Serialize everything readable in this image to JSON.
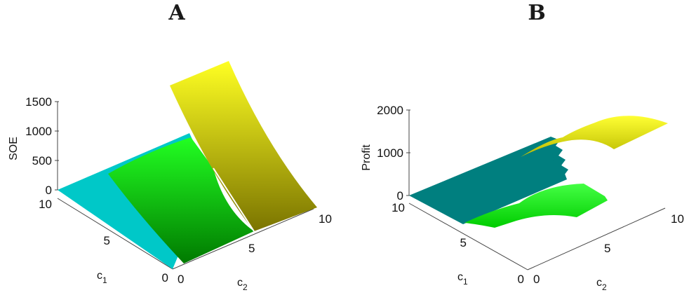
{
  "chart_data": [
    {
      "type": "surface3d",
      "panel_label": "A",
      "xlabel": "c",
      "xlabel_sub": "2",
      "ylabel": "c",
      "ylabel_sub": "1",
      "zlabel": "SOE",
      "xlim": [
        0,
        10
      ],
      "ylim": [
        0,
        10
      ],
      "zlim": [
        0,
        1500
      ],
      "x_ticks": [
        "0",
        "5",
        "10"
      ],
      "y_ticks": [
        "0",
        "5",
        "10"
      ],
      "z_ticks": [
        "0",
        "500",
        "1000",
        "1500"
      ],
      "series": [
        {
          "color": "#00c8c8",
          "description_c2_range": [
            0,
            10
          ],
          "shape": "flat plane at 0"
        },
        {
          "color_dark": "#008800",
          "color_light": "#22ff22",
          "c2_from": 0,
          "c2_to": 5,
          "peak": 600
        },
        {
          "color_dark": "#807a00",
          "color_light": "#ffff22",
          "c2_from": 5,
          "c2_to": 10,
          "peak": 1500
        }
      ]
    },
    {
      "type": "surface3d",
      "panel_label": "B",
      "xlabel": "c",
      "xlabel_sub": "2",
      "ylabel": "c",
      "ylabel_sub": "1",
      "zlabel": "Profit",
      "xlim": [
        0,
        10
      ],
      "ylim": [
        0,
        10
      ],
      "zlim": [
        0,
        2000
      ],
      "x_ticks": [
        "0",
        "5",
        "10"
      ],
      "y_ticks": [
        "0",
        "5",
        "10"
      ],
      "z_ticks": [
        "0",
        "1000",
        "2000"
      ],
      "series": [
        {
          "color": "#007f7f",
          "c2_from": 0,
          "c2_to": 5,
          "shape": "flat plane"
        },
        {
          "color_dark": "#22cc22",
          "color_light": "#44ff44",
          "c2_from": 5,
          "c2_to": 10,
          "peak": 600
        },
        {
          "color_dark": "#cccc00",
          "color_light": "#ffff22",
          "c2_from": 5,
          "c2_to": 10,
          "peak": 1900
        }
      ]
    }
  ]
}
